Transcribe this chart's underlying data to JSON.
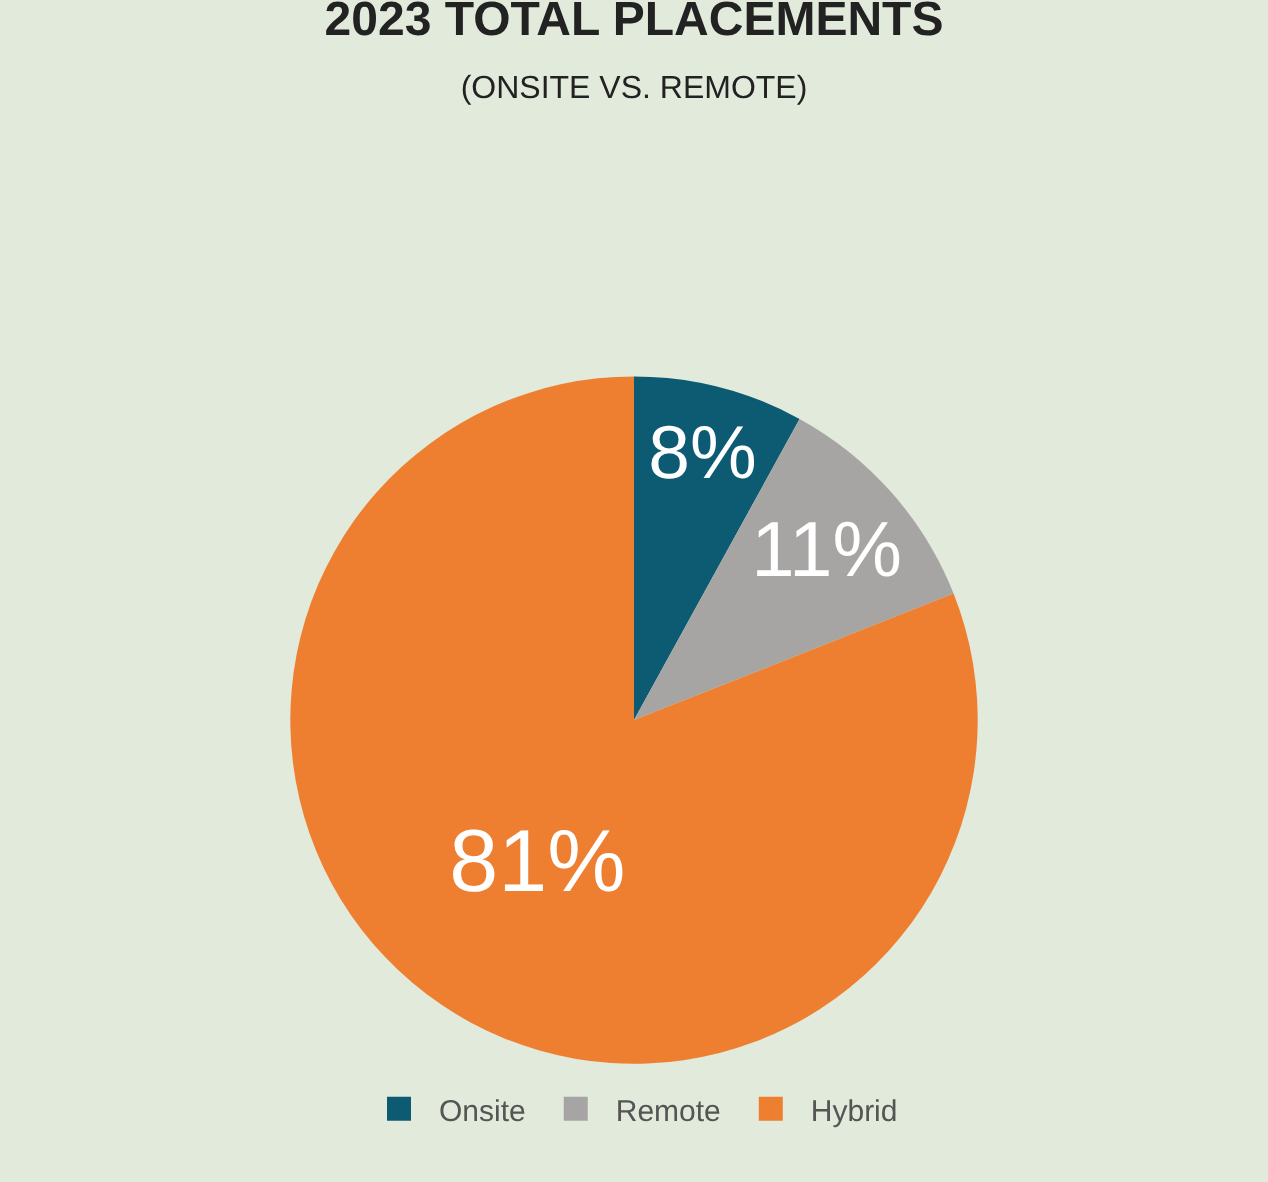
{
  "chart_data": {
    "type": "pie",
    "title": "2023 TOTAL PLACEMENTS",
    "subtitle": "(ONSITE VS. REMOTE)",
    "categories": [
      "Onsite",
      "Remote",
      "Hybrid"
    ],
    "values": [
      8,
      11,
      81
    ],
    "value_labels": [
      "8%",
      "11%",
      "81%"
    ],
    "colors": [
      "#0d5a73",
      "#a7a5a3",
      "#ee7f31"
    ],
    "legend": "bottom"
  }
}
